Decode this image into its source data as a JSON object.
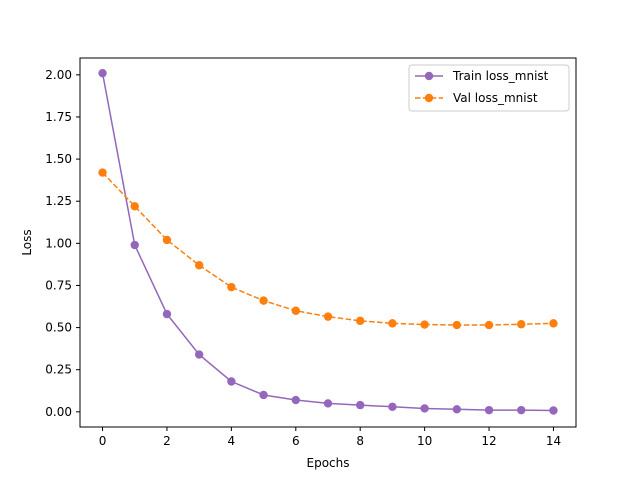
{
  "chart_data": {
    "type": "line",
    "title": "",
    "xlabel": "Epochs",
    "ylabel": "Loss",
    "x": [
      0,
      1,
      2,
      3,
      4,
      5,
      6,
      7,
      8,
      9,
      10,
      11,
      12,
      13,
      14
    ],
    "xlim": [
      -0.7,
      14.7
    ],
    "ylim": [
      -0.09,
      2.1
    ],
    "xticks": [
      0,
      2,
      4,
      6,
      8,
      10,
      12,
      14
    ],
    "yticks": [
      0.0,
      0.25,
      0.5,
      0.75,
      1.0,
      1.25,
      1.5,
      1.75,
      2.0
    ],
    "xtick_labels": [
      "0",
      "2",
      "4",
      "6",
      "8",
      "10",
      "12",
      "14"
    ],
    "ytick_labels": [
      "0.00",
      "0.25",
      "0.50",
      "0.75",
      "1.00",
      "1.25",
      "1.50",
      "1.75",
      "2.00"
    ],
    "grid": false,
    "legend_position": "top-right",
    "series": [
      {
        "name": "Train loss_mnist",
        "color": "#9467bd",
        "line_style": "solid",
        "marker": "circle",
        "values": [
          2.01,
          0.99,
          0.58,
          0.34,
          0.18,
          0.1,
          0.07,
          0.05,
          0.04,
          0.03,
          0.02,
          0.015,
          0.01,
          0.01,
          0.008
        ]
      },
      {
        "name": "Val loss_mnist",
        "color": "#ff7f0e",
        "line_style": "dashed",
        "marker": "circle",
        "values": [
          1.42,
          1.22,
          1.02,
          0.87,
          0.74,
          0.66,
          0.6,
          0.565,
          0.54,
          0.525,
          0.518,
          0.515,
          0.515,
          0.52,
          0.525
        ]
      }
    ]
  }
}
